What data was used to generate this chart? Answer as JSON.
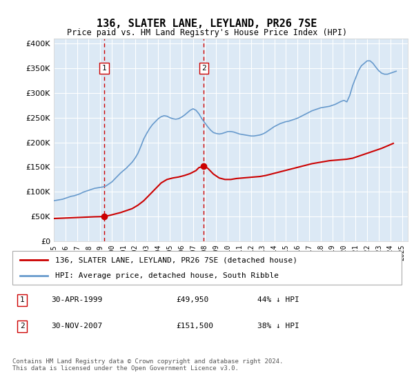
{
  "title": "136, SLATER LANE, LEYLAND, PR26 7SE",
  "subtitle": "Price paid vs. HM Land Registry's House Price Index (HPI)",
  "ylim": [
    0,
    410000
  ],
  "yticks": [
    0,
    50000,
    100000,
    150000,
    200000,
    250000,
    300000,
    350000,
    400000
  ],
  "xlim_start": 1995.0,
  "xlim_end": 2025.5,
  "background_color": "#dce9f5",
  "grid_color": "#ffffff",
  "hpi_color": "#6699cc",
  "price_color": "#cc0000",
  "vline_color": "#cc0000",
  "sale1_x": 1999.33,
  "sale1_y": 49950,
  "sale1_label": "1",
  "sale1_date": "30-APR-1999",
  "sale1_price": "£49,950",
  "sale1_hpi": "44% ↓ HPI",
  "sale2_x": 2007.92,
  "sale2_y": 151500,
  "sale2_label": "2",
  "sale2_date": "30-NOV-2007",
  "sale2_price": "£151,500",
  "sale2_hpi": "38% ↓ HPI",
  "legend_label1": "136, SLATER LANE, LEYLAND, PR26 7SE (detached house)",
  "legend_label2": "HPI: Average price, detached house, South Ribble",
  "footnote": "Contains HM Land Registry data © Crown copyright and database right 2024.\nThis data is licensed under the Open Government Licence v3.0.",
  "hpi_data_x": [
    1995.0,
    1995.25,
    1995.5,
    1995.75,
    1996.0,
    1996.25,
    1996.5,
    1996.75,
    1997.0,
    1997.25,
    1997.5,
    1997.75,
    1998.0,
    1998.25,
    1998.5,
    1998.75,
    1999.0,
    1999.25,
    1999.5,
    1999.75,
    2000.0,
    2000.25,
    2000.5,
    2000.75,
    2001.0,
    2001.25,
    2001.5,
    2001.75,
    2002.0,
    2002.25,
    2002.5,
    2002.75,
    2003.0,
    2003.25,
    2003.5,
    2003.75,
    2004.0,
    2004.25,
    2004.5,
    2004.75,
    2005.0,
    2005.25,
    2005.5,
    2005.75,
    2006.0,
    2006.25,
    2006.5,
    2006.75,
    2007.0,
    2007.25,
    2007.5,
    2007.75,
    2008.0,
    2008.25,
    2008.5,
    2008.75,
    2009.0,
    2009.25,
    2009.5,
    2009.75,
    2010.0,
    2010.25,
    2010.5,
    2010.75,
    2011.0,
    2011.25,
    2011.5,
    2011.75,
    2012.0,
    2012.25,
    2012.5,
    2012.75,
    2013.0,
    2013.25,
    2013.5,
    2013.75,
    2014.0,
    2014.25,
    2014.5,
    2014.75,
    2015.0,
    2015.25,
    2015.5,
    2015.75,
    2016.0,
    2016.25,
    2016.5,
    2016.75,
    2017.0,
    2017.25,
    2017.5,
    2017.75,
    2018.0,
    2018.25,
    2018.5,
    2018.75,
    2019.0,
    2019.25,
    2019.5,
    2019.75,
    2020.0,
    2020.25,
    2020.5,
    2020.75,
    2021.0,
    2021.25,
    2021.5,
    2021.75,
    2022.0,
    2022.25,
    2022.5,
    2022.75,
    2023.0,
    2023.25,
    2023.5,
    2023.75,
    2024.0,
    2024.25,
    2024.5
  ],
  "hpi_data_y": [
    82000,
    83000,
    84000,
    85000,
    87000,
    89000,
    91000,
    92000,
    94000,
    96000,
    99000,
    101000,
    103000,
    105000,
    107000,
    108000,
    109000,
    110000,
    112000,
    116000,
    120000,
    126000,
    132000,
    138000,
    143000,
    148000,
    154000,
    160000,
    168000,
    178000,
    192000,
    207000,
    218000,
    228000,
    236000,
    242000,
    248000,
    252000,
    254000,
    253000,
    250000,
    248000,
    247000,
    248000,
    251000,
    255000,
    260000,
    265000,
    268000,
    265000,
    258000,
    248000,
    240000,
    232000,
    225000,
    220000,
    218000,
    217000,
    218000,
    220000,
    222000,
    222000,
    221000,
    219000,
    217000,
    216000,
    215000,
    214000,
    213000,
    213000,
    214000,
    215000,
    217000,
    220000,
    224000,
    228000,
    232000,
    235000,
    238000,
    240000,
    242000,
    243000,
    245000,
    247000,
    249000,
    252000,
    255000,
    258000,
    261000,
    264000,
    266000,
    268000,
    270000,
    271000,
    272000,
    273000,
    275000,
    277000,
    280000,
    283000,
    285000,
    282000,
    295000,
    315000,
    330000,
    345000,
    355000,
    360000,
    365000,
    365000,
    360000,
    352000,
    345000,
    340000,
    338000,
    338000,
    340000,
    342000,
    344000
  ],
  "price_data_x": [
    1995.0,
    1995.5,
    1996.0,
    1996.5,
    1997.0,
    1997.5,
    1998.0,
    1998.5,
    1999.0,
    1999.33,
    1999.75,
    2000.25,
    2000.75,
    2001.25,
    2001.75,
    2002.25,
    2002.75,
    2003.25,
    2003.75,
    2004.25,
    2004.75,
    2005.25,
    2005.75,
    2006.25,
    2006.75,
    2007.25,
    2007.5,
    2007.92,
    2008.25,
    2008.75,
    2009.25,
    2009.75,
    2010.25,
    2010.75,
    2011.25,
    2011.75,
    2012.25,
    2012.75,
    2013.25,
    2013.75,
    2014.25,
    2014.75,
    2015.25,
    2015.75,
    2016.25,
    2016.75,
    2017.25,
    2017.75,
    2018.25,
    2018.75,
    2019.25,
    2019.75,
    2020.25,
    2020.75,
    2021.25,
    2021.75,
    2022.25,
    2022.75,
    2023.25,
    2023.75,
    2024.25
  ],
  "price_data_y": [
    46000,
    46500,
    47000,
    47500,
    48000,
    48500,
    49000,
    49500,
    49800,
    49950,
    52000,
    55000,
    58000,
    62000,
    66000,
    73000,
    82000,
    94000,
    106000,
    118000,
    125000,
    128000,
    130000,
    133000,
    137000,
    143000,
    149000,
    151500,
    148000,
    136000,
    128000,
    125000,
    125000,
    127000,
    128000,
    129000,
    130000,
    131000,
    133000,
    136000,
    139000,
    142000,
    145000,
    148000,
    151000,
    154000,
    157000,
    159000,
    161000,
    163000,
    164000,
    165000,
    166000,
    168000,
    172000,
    176000,
    180000,
    184000,
    188000,
    193000,
    198000
  ]
}
